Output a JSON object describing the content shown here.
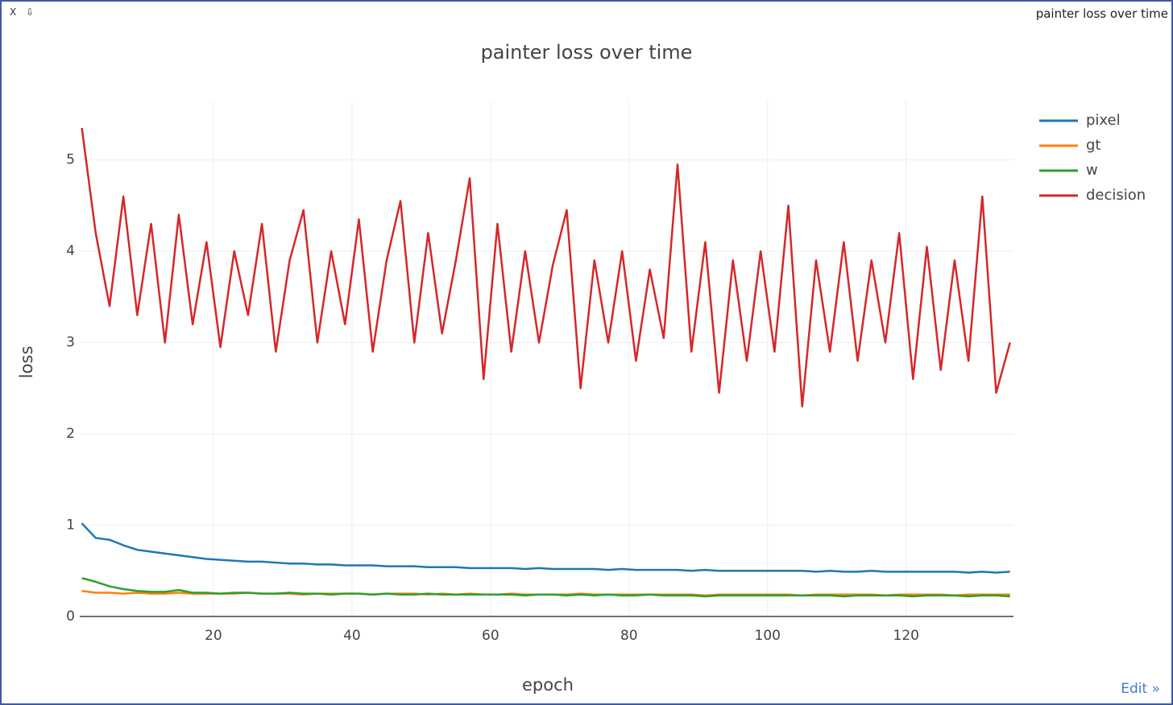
{
  "window": {
    "title": "painter loss over time",
    "close": "X",
    "download": "⇩",
    "edit": "Edit »"
  },
  "chart_data": {
    "type": "line",
    "title": "painter loss over time",
    "x_label": "epoch",
    "y_label": "loss",
    "xlim": [
      0.7,
      135.5
    ],
    "ylim": [
      0,
      5.65
    ],
    "xticks": [
      20,
      40,
      60,
      80,
      100,
      120
    ],
    "yticks": [
      0,
      1,
      2,
      3,
      4,
      5
    ],
    "grid": true,
    "legend": "top-right",
    "x": [
      1,
      3,
      5,
      7,
      9,
      11,
      13,
      15,
      17,
      19,
      21,
      23,
      25,
      27,
      29,
      31,
      33,
      35,
      37,
      39,
      41,
      43,
      45,
      47,
      49,
      51,
      53,
      55,
      57,
      59,
      61,
      63,
      65,
      67,
      69,
      71,
      73,
      75,
      77,
      79,
      81,
      83,
      85,
      87,
      89,
      91,
      93,
      95,
      97,
      99,
      101,
      103,
      105,
      107,
      109,
      111,
      113,
      115,
      117,
      119,
      121,
      123,
      125,
      127,
      129,
      131,
      133,
      135
    ],
    "series": [
      {
        "name": "pixel",
        "color": "#1f77b4",
        "values": [
          1.02,
          0.86,
          0.84,
          0.78,
          0.73,
          0.71,
          0.69,
          0.67,
          0.65,
          0.63,
          0.62,
          0.61,
          0.6,
          0.6,
          0.59,
          0.58,
          0.58,
          0.57,
          0.57,
          0.56,
          0.56,
          0.56,
          0.55,
          0.55,
          0.55,
          0.54,
          0.54,
          0.54,
          0.53,
          0.53,
          0.53,
          0.53,
          0.52,
          0.53,
          0.52,
          0.52,
          0.52,
          0.52,
          0.51,
          0.52,
          0.51,
          0.51,
          0.51,
          0.51,
          0.5,
          0.51,
          0.5,
          0.5,
          0.5,
          0.5,
          0.5,
          0.5,
          0.5,
          0.49,
          0.5,
          0.49,
          0.49,
          0.5,
          0.49,
          0.49,
          0.49,
          0.49,
          0.49,
          0.49,
          0.48,
          0.49,
          0.48,
          0.49
        ]
      },
      {
        "name": "gt",
        "color": "#ff7f0e",
        "values": [
          0.28,
          0.26,
          0.26,
          0.25,
          0.26,
          0.25,
          0.25,
          0.26,
          0.25,
          0.25,
          0.25,
          0.25,
          0.26,
          0.25,
          0.25,
          0.25,
          0.24,
          0.25,
          0.25,
          0.25,
          0.25,
          0.24,
          0.25,
          0.25,
          0.25,
          0.24,
          0.25,
          0.24,
          0.25,
          0.24,
          0.24,
          0.25,
          0.24,
          0.24,
          0.24,
          0.24,
          0.25,
          0.24,
          0.24,
          0.24,
          0.24,
          0.24,
          0.24,
          0.24,
          0.24,
          0.23,
          0.24,
          0.24,
          0.24,
          0.24,
          0.24,
          0.24,
          0.23,
          0.24,
          0.24,
          0.24,
          0.24,
          0.24,
          0.23,
          0.24,
          0.24,
          0.24,
          0.24,
          0.23,
          0.24,
          0.24,
          0.24,
          0.24
        ]
      },
      {
        "name": "w",
        "color": "#2ca02c",
        "values": [
          0.42,
          0.38,
          0.33,
          0.3,
          0.28,
          0.27,
          0.27,
          0.29,
          0.26,
          0.26,
          0.25,
          0.26,
          0.26,
          0.25,
          0.25,
          0.26,
          0.25,
          0.25,
          0.24,
          0.25,
          0.25,
          0.24,
          0.25,
          0.24,
          0.24,
          0.25,
          0.24,
          0.24,
          0.24,
          0.24,
          0.24,
          0.24,
          0.23,
          0.24,
          0.24,
          0.23,
          0.24,
          0.23,
          0.24,
          0.23,
          0.23,
          0.24,
          0.23,
          0.23,
          0.23,
          0.22,
          0.23,
          0.23,
          0.23,
          0.23,
          0.23,
          0.23,
          0.23,
          0.23,
          0.23,
          0.22,
          0.23,
          0.23,
          0.23,
          0.23,
          0.22,
          0.23,
          0.23,
          0.23,
          0.22,
          0.23,
          0.23,
          0.22
        ]
      },
      {
        "name": "decision",
        "color": "#d62728",
        "values": [
          5.35,
          4.2,
          3.4,
          4.6,
          3.3,
          4.3,
          3.0,
          4.4,
          3.2,
          4.1,
          2.95,
          4.0,
          3.3,
          4.3,
          2.9,
          3.9,
          4.45,
          3.0,
          4.0,
          3.2,
          4.35,
          2.9,
          3.9,
          4.55,
          3.0,
          4.2,
          3.1,
          3.9,
          4.8,
          2.6,
          4.3,
          2.9,
          4.0,
          3.0,
          3.85,
          4.45,
          2.5,
          3.9,
          3.0,
          4.0,
          2.8,
          3.8,
          3.05,
          4.95,
          2.9,
          4.1,
          2.45,
          3.9,
          2.8,
          4.0,
          2.9,
          4.5,
          2.3,
          3.9,
          2.9,
          4.1,
          2.8,
          3.9,
          3.0,
          4.2,
          2.6,
          4.05,
          2.7,
          3.9,
          2.8,
          4.6,
          2.45,
          3.0
        ]
      }
    ]
  }
}
